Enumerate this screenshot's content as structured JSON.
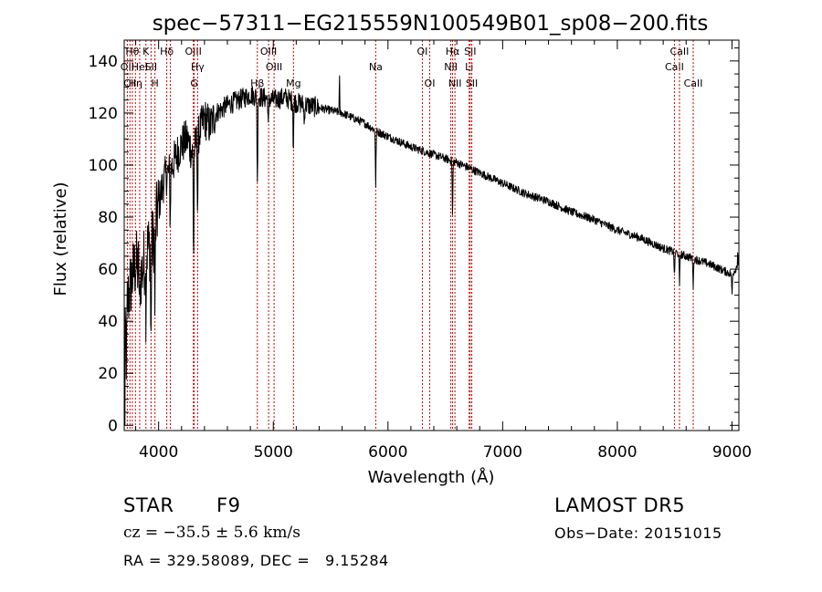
{
  "chart_data": {
    "type": "line",
    "title": "spec−57311−EG215559N100549B01_sp08−200.fits",
    "xlabel": "Wavelength (Å)",
    "ylabel": "Flux (relative)",
    "xlim": [
      3700,
      9060
    ],
    "ylim": [
      -2,
      148
    ],
    "xticks": [
      4000,
      5000,
      6000,
      7000,
      8000,
      9000
    ],
    "yticks": [
      0,
      20,
      40,
      60,
      80,
      100,
      120,
      140
    ],
    "grid": false,
    "line_color": "#000000",
    "marker_line_color": "#cc0000",
    "continuum": {
      "x": [
        3700,
        3720,
        3760,
        3800,
        3850,
        3900,
        3950,
        4000,
        4050,
        4100,
        4150,
        4200,
        4250,
        4300,
        4350,
        4400,
        4450,
        4500,
        4600,
        4700,
        4800,
        4900,
        5000,
        5100,
        5200,
        5300,
        5400,
        5500,
        5600,
        5700,
        5800,
        5900,
        6000,
        6200,
        6400,
        6600,
        6800,
        7000,
        7200,
        7400,
        7600,
        7800,
        8000,
        8200,
        8400,
        8600,
        8800,
        8900,
        8950,
        9000,
        9030,
        9050
      ],
      "y": [
        20,
        45,
        55,
        62,
        58,
        68,
        70,
        85,
        95,
        98,
        103,
        108,
        110,
        104,
        112,
        118,
        115,
        120,
        123,
        125,
        127,
        126,
        125,
        126,
        124,
        123,
        122,
        121,
        120,
        118,
        116,
        113,
        111,
        107,
        104,
        101,
        97,
        93,
        89,
        86,
        82,
        79,
        75,
        72,
        68,
        65,
        62,
        60,
        59,
        58,
        60,
        62
      ]
    },
    "absorption_features": [
      {
        "x": 3720,
        "depth": 20
      },
      {
        "x": 3835,
        "depth": 18
      },
      {
        "x": 3889,
        "depth": 20
      },
      {
        "x": 3933,
        "depth": 40
      },
      {
        "x": 3968,
        "depth": 32
      },
      {
        "x": 4101,
        "depth": 20
      },
      {
        "x": 4305,
        "depth": 40
      },
      {
        "x": 4340,
        "depth": 28
      },
      {
        "x": 4861,
        "depth": 35
      },
      {
        "x": 4957,
        "depth": 12
      },
      {
        "x": 5175,
        "depth": 18
      },
      {
        "x": 5270,
        "depth": 8
      },
      {
        "x": 5893,
        "depth": 22
      },
      {
        "x": 6563,
        "depth": 22
      },
      {
        "x": 8498,
        "depth": 10
      },
      {
        "x": 8542,
        "depth": 13
      },
      {
        "x": 8662,
        "depth": 11
      },
      {
        "x": 9000,
        "depth": 8
      }
    ],
    "emission_features": [
      {
        "x": 5577,
        "height": 15
      },
      {
        "x": 9050,
        "height": 6
      }
    ],
    "line_markers": [
      {
        "x": 3727,
        "label": "OII",
        "row": 1
      },
      {
        "x": 3750,
        "label": "CII",
        "row": 2
      },
      {
        "x": 3771,
        "label": "Hθ",
        "row": 0
      },
      {
        "x": 3798,
        "label": "Hη",
        "row": 2
      },
      {
        "x": 3835,
        "label": "HeI",
        "row": 1
      },
      {
        "x": 3889,
        "label": "K",
        "row": 0
      },
      {
        "x": 3934,
        "label": "SII",
        "row": 1
      },
      {
        "x": 3968,
        "label": "H",
        "row": 2
      },
      {
        "x": 4071,
        "label": "Hδ",
        "row": 0
      },
      {
        "x": 4102,
        "label": "",
        "row": 0
      },
      {
        "x": 4303,
        "label": "OIII",
        "row": 0
      },
      {
        "x": 4340,
        "label": "Hγ",
        "row": 1
      },
      {
        "x": 4310,
        "label": "G",
        "row": 2
      },
      {
        "x": 4861,
        "label": "Hβ",
        "row": 2
      },
      {
        "x": 4959,
        "label": "OIII",
        "row": 0
      },
      {
        "x": 5007,
        "label": "OIII",
        "row": 1
      },
      {
        "x": 5176,
        "label": "Mg",
        "row": 2
      },
      {
        "x": 5893,
        "label": "Na",
        "row": 1
      },
      {
        "x": 6300,
        "label": "OI",
        "row": 0
      },
      {
        "x": 6364,
        "label": "OI",
        "row": 2
      },
      {
        "x": 6548,
        "label": "NII",
        "row": 1
      },
      {
        "x": 6563,
        "label": "Hα",
        "row": 0
      },
      {
        "x": 6584,
        "label": "NII",
        "row": 2
      },
      {
        "x": 6708,
        "label": "Li",
        "row": 1
      },
      {
        "x": 6717,
        "label": "SII",
        "row": 0
      },
      {
        "x": 6731,
        "label": "SII",
        "row": 2
      },
      {
        "x": 8498,
        "label": "CaII",
        "row": 1
      },
      {
        "x": 8542,
        "label": "CaII",
        "row": 0
      },
      {
        "x": 8662,
        "label": "CaII",
        "row": 2
      }
    ]
  },
  "info": {
    "object_class": "STAR",
    "subclass": "F9",
    "survey": "LAMOST DR5",
    "redshift_text": "cz = −35.5 ± 5.6 km/s",
    "obs_date": "Obs−Date: 20151015",
    "coords": "RA = 329.58089, DEC =   9.15284"
  }
}
